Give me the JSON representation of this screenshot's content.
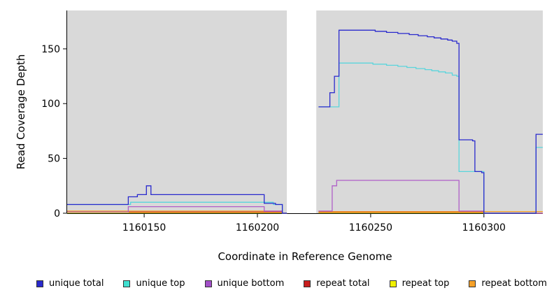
{
  "chart_data": {
    "type": "line",
    "style": "step-after coverage plot",
    "title": "",
    "xlabel": "Coordinate in Reference Genome",
    "ylabel": "Read Coverage Depth",
    "x_range": [
      1160116,
      1160326
    ],
    "y_range": [
      0,
      185
    ],
    "x_ticks": [
      {
        "v": 1160150,
        "label": "1160150"
      },
      {
        "v": 1160200,
        "label": "1160200"
      },
      {
        "v": 1160250,
        "label": "1160250"
      },
      {
        "v": 1160300,
        "label": "1160300"
      }
    ],
    "y_ticks": [
      {
        "v": 0,
        "label": "0"
      },
      {
        "v": 50,
        "label": "50"
      },
      {
        "v": 100,
        "label": "100"
      },
      {
        "v": 150,
        "label": "150"
      }
    ],
    "background": {
      "color": "#d9d9d9",
      "regions": [
        [
          1160116,
          1160213
        ],
        [
          1160226,
          1160326
        ]
      ]
    },
    "gap_region": [
      1160213,
      1160226
    ],
    "series": [
      {
        "name": "repeat top",
        "color": "#f0f000",
        "points": [
          [
            1160116,
            0.5
          ],
          [
            1160211,
            0
          ],
          [
            1160213,
            null
          ],
          [
            1160227,
            0.5
          ],
          [
            1160300,
            0
          ],
          [
            1160326,
            null
          ]
        ]
      },
      {
        "name": "repeat total",
        "color": "#c82828",
        "points": [
          [
            1160116,
            1
          ],
          [
            1160211,
            0
          ],
          [
            1160213,
            null
          ],
          [
            1160227,
            1
          ],
          [
            1160300,
            0
          ],
          [
            1160326,
            null
          ]
        ]
      },
      {
        "name": "repeat bottom",
        "color": "#f5a028",
        "points": [
          [
            1160116,
            2
          ],
          [
            1160211,
            0
          ],
          [
            1160213,
            null
          ],
          [
            1160227,
            1.5
          ],
          [
            1160326,
            null
          ]
        ]
      },
      {
        "name": "unique bottom",
        "color": "#b05fc8",
        "points": [
          [
            1160116,
            1
          ],
          [
            1160143,
            6
          ],
          [
            1160203,
            2
          ],
          [
            1160211,
            0
          ],
          [
            1160213,
            null
          ],
          [
            1160227,
            2
          ],
          [
            1160233,
            25
          ],
          [
            1160235,
            30
          ],
          [
            1160289,
            2
          ],
          [
            1160300,
            0
          ],
          [
            1160326,
            null
          ]
        ]
      },
      {
        "name": "unique top",
        "color": "#5ad5dc",
        "points": [
          [
            1160116,
            8
          ],
          [
            1160144,
            10
          ],
          [
            1160202,
            10
          ],
          [
            1160207,
            8
          ],
          [
            1160211,
            0
          ],
          [
            1160213,
            null
          ],
          [
            1160227,
            97
          ],
          [
            1160236,
            137
          ],
          [
            1160251,
            136
          ],
          [
            1160257,
            135
          ],
          [
            1160262,
            134
          ],
          [
            1160266,
            133
          ],
          [
            1160270,
            132
          ],
          [
            1160274,
            131
          ],
          [
            1160277,
            130
          ],
          [
            1160280,
            129
          ],
          [
            1160283,
            128
          ],
          [
            1160286,
            126
          ],
          [
            1160288,
            125
          ],
          [
            1160289,
            38
          ],
          [
            1160300,
            0
          ],
          [
            1160322,
            0
          ],
          [
            1160323,
            60
          ],
          [
            1160326,
            null
          ]
        ]
      },
      {
        "name": "unique total",
        "color": "#2929cd",
        "points": [
          [
            1160116,
            8
          ],
          [
            1160143,
            15
          ],
          [
            1160147,
            17
          ],
          [
            1160151,
            25
          ],
          [
            1160153,
            17
          ],
          [
            1160203,
            9
          ],
          [
            1160208,
            8
          ],
          [
            1160211,
            0
          ],
          [
            1160213,
            null
          ],
          [
            1160227,
            97
          ],
          [
            1160232,
            110
          ],
          [
            1160234,
            125
          ],
          [
            1160236,
            167
          ],
          [
            1160252,
            166
          ],
          [
            1160257,
            165
          ],
          [
            1160262,
            164
          ],
          [
            1160267,
            163
          ],
          [
            1160271,
            162
          ],
          [
            1160275,
            161
          ],
          [
            1160278,
            160
          ],
          [
            1160281,
            159
          ],
          [
            1160284,
            158
          ],
          [
            1160286,
            157
          ],
          [
            1160288,
            155
          ],
          [
            1160289,
            67
          ],
          [
            1160295,
            66
          ],
          [
            1160296,
            38
          ],
          [
            1160299,
            37
          ],
          [
            1160300,
            0
          ],
          [
            1160322,
            0
          ],
          [
            1160323,
            72
          ],
          [
            1160326,
            null
          ]
        ]
      }
    ],
    "legend": [
      {
        "label": "unique total",
        "color": "#2929cd"
      },
      {
        "label": "unique top",
        "color": "#40e0d0"
      },
      {
        "label": "unique bottom",
        "color": "#a24fc8"
      },
      {
        "label": "repeat total",
        "color": "#c81e1e"
      },
      {
        "label": "repeat top",
        "color": "#f0f000"
      },
      {
        "label": "repeat bottom",
        "color": "#f5a028"
      }
    ]
  }
}
